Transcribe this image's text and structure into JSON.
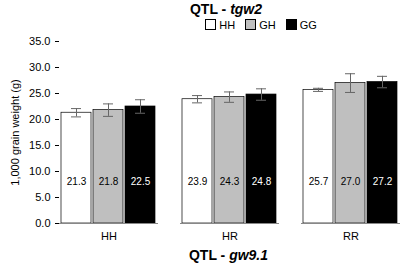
{
  "chart_data": {
    "type": "bar",
    "title": "QTL - tgw2",
    "x_label": "QTL - gw9.1",
    "y_label": "1,000 grain weight (g)",
    "categories": [
      "HH",
      "HR",
      "RR"
    ],
    "series": [
      {
        "name": "HH",
        "color": "#ffffff",
        "values": [
          21.3,
          23.9,
          25.7
        ],
        "errors": [
          0.8,
          0.7,
          0.3
        ]
      },
      {
        "name": "GH",
        "color": "#bfbfbf",
        "values": [
          21.8,
          24.3,
          27.0
        ],
        "value_labels": [
          "21.8",
          "24.3",
          "27.0"
        ],
        "errors": [
          1.2,
          1.0,
          1.8
        ]
      },
      {
        "name": "GG",
        "color": "#000000",
        "values": [
          22.5,
          24.8,
          27.2
        ],
        "errors": [
          1.3,
          1.1,
          1.1
        ]
      }
    ],
    "ylim": [
      0,
      35
    ],
    "yticks": [
      {
        "value": 0,
        "label": "0.0"
      },
      {
        "value": 5,
        "label": "5.0"
      },
      {
        "value": 10,
        "label": "10.0"
      },
      {
        "value": 15,
        "label": "15.0"
      },
      {
        "value": 20,
        "label": "20.0"
      },
      {
        "value": 25,
        "label": "25.0"
      },
      {
        "value": 30,
        "label": "30.0"
      },
      {
        "value": 35,
        "label": "35.0"
      }
    ],
    "legend": "top",
    "data_labels": true,
    "grid": false
  }
}
